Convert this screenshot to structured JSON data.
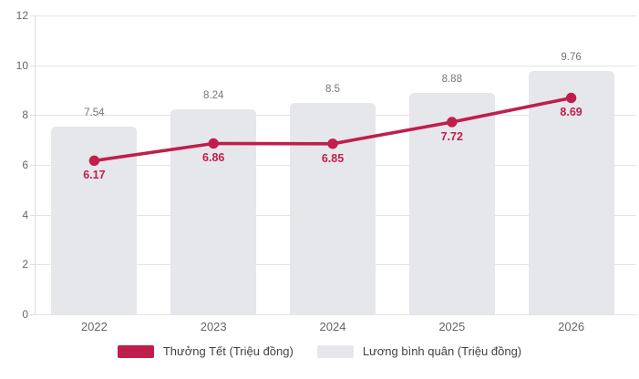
{
  "chart_data": {
    "type": "combo-bar-line",
    "categories": [
      "2022",
      "2023",
      "2024",
      "2025",
      "2026"
    ],
    "series": [
      {
        "name": "Thưởng Tết (Triệu đồng)",
        "type": "line",
        "color": "#c01e4c",
        "values": [
          6.17,
          6.86,
          6.85,
          7.72,
          8.69
        ],
        "labels": [
          "6.17",
          "6.86",
          "6.85",
          "7.72",
          "8.69"
        ]
      },
      {
        "name": "Lương bình quân (Triệu đồng)",
        "type": "bar",
        "color": "#e6e7ea",
        "values": [
          7.54,
          8.24,
          8.5,
          8.88,
          9.76
        ],
        "labels": [
          "7.54",
          "8.24",
          "8.5",
          "8.88",
          "9.76"
        ]
      }
    ],
    "title": "",
    "xlabel": "",
    "ylabel": "",
    "ylim": [
      0,
      12
    ],
    "ytick_interval": 2,
    "yticks": [
      "0",
      "2",
      "4",
      "6",
      "8",
      "10",
      "12"
    ],
    "grid": true,
    "legend_position": "bottom"
  },
  "colors": {
    "accent": "#c01e4c",
    "bar": "#e6e7ea",
    "grid": "#e4e4e4",
    "axis": "#dcdcdc",
    "axis_text": "#666666",
    "bar_label_text": "#757575",
    "legend_text": "#424242",
    "background": "#ffffff"
  }
}
